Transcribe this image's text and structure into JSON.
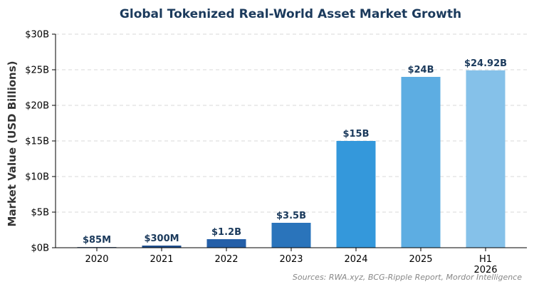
{
  "chart_data": {
    "type": "bar",
    "title": "Global Tokenized Real-World Asset Market Growth",
    "xlabel": "",
    "ylabel": "Market Value (USD Billions)",
    "categories": [
      "2020",
      "2021",
      "2022",
      "2023",
      "2024",
      "2025",
      "H1\n2026"
    ],
    "values": [
      0.085,
      0.3,
      1.2,
      3.5,
      15,
      24,
      24.92
    ],
    "data_labels": [
      "$85M",
      "$300M",
      "$1.2B",
      "$3.5B",
      "$15B",
      "$24B",
      "$24.92B"
    ],
    "bar_colors": [
      "#1f3f6e",
      "#1f4e8c",
      "#245fa8",
      "#2a74bb",
      "#3498db",
      "#5dade2",
      "#85c1e9"
    ],
    "ylim": [
      0,
      30
    ],
    "yticks": [
      0,
      5,
      10,
      15,
      20,
      25,
      30
    ],
    "ytick_labels": [
      "$0B",
      "$5B",
      "$10B",
      "$15B",
      "$20B",
      "$25B",
      "$30B"
    ],
    "grid": true,
    "legend": "none"
  },
  "source_note": "Sources: RWA.xyz, BCG-Ripple Report, Mordor Intelligence"
}
